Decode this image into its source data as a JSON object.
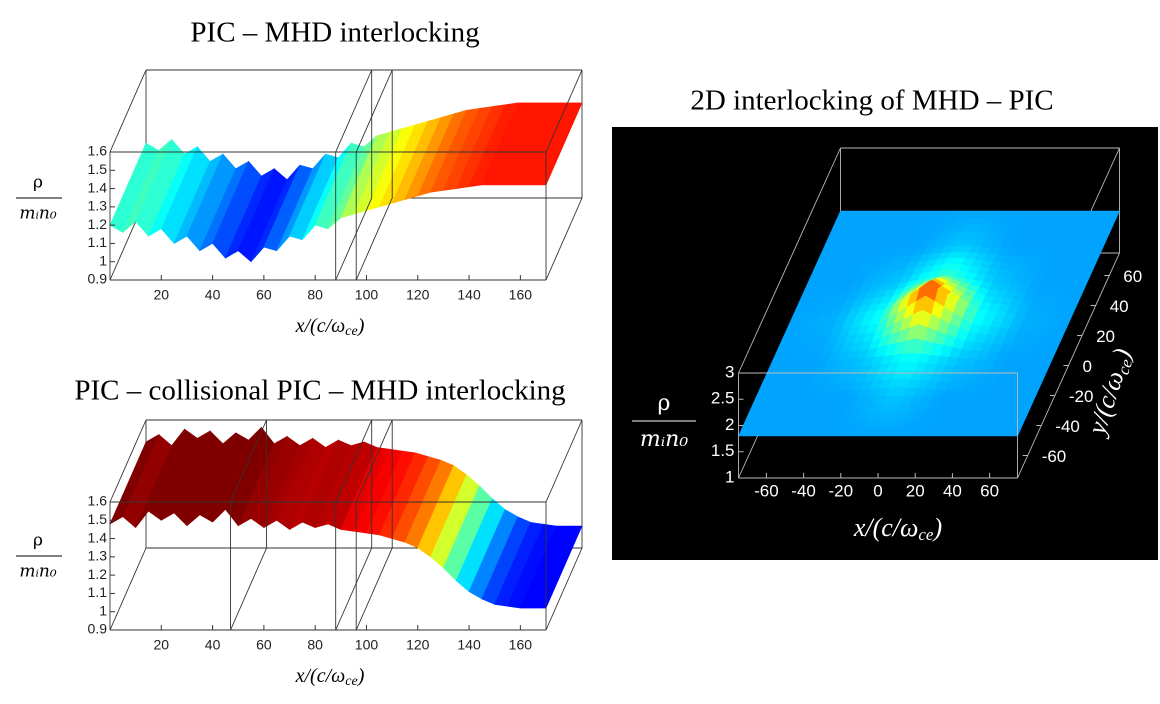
{
  "chart_data": [
    {
      "type": "surface",
      "title": "PIC – MHD interlocking",
      "xlabel": {
        "base": "x/(c/ω",
        "sub": "ce",
        "close": ")"
      },
      "zlabel": {
        "numerator": "ρ",
        "denominator": "mᵢn₀"
      },
      "xlim": [
        0,
        170
      ],
      "xticks": [
        20,
        40,
        60,
        80,
        100,
        120,
        140,
        160
      ],
      "zlim": [
        0.9,
        1.6
      ],
      "zticks": [
        0.9,
        1,
        1.1,
        1.2,
        1.3,
        1.4,
        1.5,
        1.6
      ],
      "clim": [
        0.95,
        1.5
      ],
      "boundaries": [
        88,
        96
      ],
      "x": [
        0,
        5,
        10,
        15,
        20,
        25,
        30,
        35,
        40,
        45,
        50,
        55,
        60,
        65,
        70,
        75,
        80,
        85,
        90,
        95,
        100,
        105,
        110,
        115,
        120,
        125,
        130,
        135,
        140,
        145,
        150,
        155,
        160,
        165,
        170
      ],
      "values": [
        1.2,
        1.16,
        1.22,
        1.14,
        1.18,
        1.1,
        1.14,
        1.06,
        1.1,
        1.02,
        1.06,
        1.0,
        1.08,
        1.06,
        1.14,
        1.12,
        1.2,
        1.18,
        1.24,
        1.26,
        1.28,
        1.3,
        1.32,
        1.34,
        1.36,
        1.38,
        1.39,
        1.4,
        1.41,
        1.42,
        1.42,
        1.42,
        1.42,
        1.42,
        1.42
      ]
    },
    {
      "type": "surface",
      "title": "PIC – collisional PIC – MHD interlocking",
      "xlabel": {
        "base": "x/(c/ω",
        "sub": "ce",
        "close": ")"
      },
      "zlabel": {
        "numerator": "ρ",
        "denominator": "mᵢn₀"
      },
      "xlim": [
        0,
        170
      ],
      "xticks": [
        20,
        40,
        60,
        80,
        100,
        120,
        140,
        160
      ],
      "zlim": [
        0.9,
        1.6
      ],
      "zticks": [
        0.9,
        1,
        1.1,
        1.2,
        1.3,
        1.4,
        1.5,
        1.6
      ],
      "clim": [
        0.95,
        1.5
      ],
      "boundaries": [
        47,
        88,
        96
      ],
      "x": [
        0,
        5,
        10,
        15,
        20,
        25,
        30,
        35,
        40,
        45,
        50,
        55,
        60,
        65,
        70,
        75,
        80,
        85,
        90,
        95,
        100,
        105,
        110,
        115,
        120,
        125,
        130,
        135,
        140,
        145,
        150,
        155,
        160,
        165,
        170
      ],
      "values": [
        1.48,
        1.52,
        1.46,
        1.55,
        1.5,
        1.54,
        1.47,
        1.53,
        1.49,
        1.56,
        1.47,
        1.51,
        1.46,
        1.5,
        1.45,
        1.49,
        1.46,
        1.48,
        1.45,
        1.44,
        1.43,
        1.42,
        1.4,
        1.38,
        1.35,
        1.3,
        1.24,
        1.17,
        1.11,
        1.07,
        1.04,
        1.03,
        1.02,
        1.02,
        1.02
      ]
    },
    {
      "type": "surface2d",
      "title": "2D interlocking of MHD – PIC",
      "xlabel": {
        "base": "x/(c/ω",
        "sub": "ce",
        "close": ")"
      },
      "ylabel": {
        "base": "y/(c/ω",
        "sub": "ce",
        "close": ")"
      },
      "zlabel": {
        "numerator": "ρ",
        "denominator": "mᵢn₀"
      },
      "xlim": [
        -75,
        75
      ],
      "ylim": [
        -75,
        75
      ],
      "zlim": [
        1,
        3
      ],
      "xticks": [
        -60,
        -40,
        -20,
        0,
        20,
        40,
        60
      ],
      "yticks": [
        -60,
        -40,
        -20,
        0,
        20,
        40,
        60
      ],
      "zticks": [
        1,
        1.5,
        2,
        2.5,
        3
      ],
      "clim": [
        1.4,
        2.8
      ],
      "x": [
        -75,
        -50,
        -25,
        0,
        25,
        50,
        75
      ],
      "y": [
        -75,
        -50,
        -25,
        0,
        25,
        50,
        75
      ],
      "values": [
        [
          1.8,
          1.8,
          1.8,
          1.8,
          1.8,
          1.8,
          1.8
        ],
        [
          1.8,
          1.8,
          1.8,
          1.85,
          1.8,
          1.8,
          1.8
        ],
        [
          1.8,
          1.8,
          1.85,
          1.95,
          1.85,
          1.8,
          1.8
        ],
        [
          1.8,
          1.82,
          1.95,
          2.6,
          1.95,
          1.82,
          1.8
        ],
        [
          1.8,
          1.8,
          1.85,
          2.0,
          1.85,
          1.8,
          1.8
        ],
        [
          1.8,
          1.8,
          1.8,
          1.85,
          1.8,
          1.8,
          1.8
        ],
        [
          1.8,
          1.8,
          1.8,
          1.8,
          1.8,
          1.8,
          1.8
        ]
      ]
    }
  ]
}
